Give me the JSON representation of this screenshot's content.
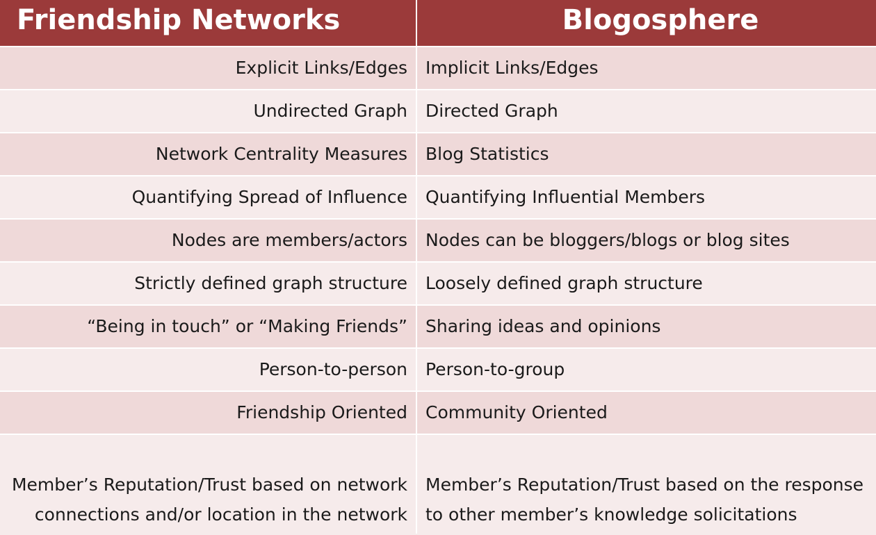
{
  "header": {
    "left": "Friendship Networks",
    "right": "Blogosphere"
  },
  "rows": [
    {
      "left": "Explicit Links/Edges",
      "right": "Implicit Links/Edges"
    },
    {
      "left": "Undirected Graph",
      "right": "Directed Graph"
    },
    {
      "left": "Network Centrality Measures",
      "right": "Blog Statistics"
    },
    {
      "left": "Quantifying Spread of Influence",
      "right": "Quantifying Influential Members"
    },
    {
      "left": "Nodes are members/actors",
      "right": "Nodes can be bloggers/blogs or blog sites"
    },
    {
      "left": "Strictly defined graph structure",
      "right": "Loosely defined graph structure"
    },
    {
      "left": "“Being in touch” or “Making Friends”",
      "right": "Sharing ideas and opinions"
    },
    {
      "left": "Person-to-person",
      "right": "Person-to-group"
    },
    {
      "left": "Friendship Oriented",
      "right": "Community Oriented"
    }
  ],
  "last_row": {
    "left_line1": "Member’s Reputation/Trust based on network",
    "left_line2": "connections and/or location in the network",
    "right_line1": "Member’s Reputation/Trust based on the response",
    "right_line2": "to other member’s knowledge solicitations"
  },
  "colors": {
    "header_bg": "#9b3a3a",
    "row_dark": "#efd9d9",
    "row_light": "#f6ebeb"
  }
}
